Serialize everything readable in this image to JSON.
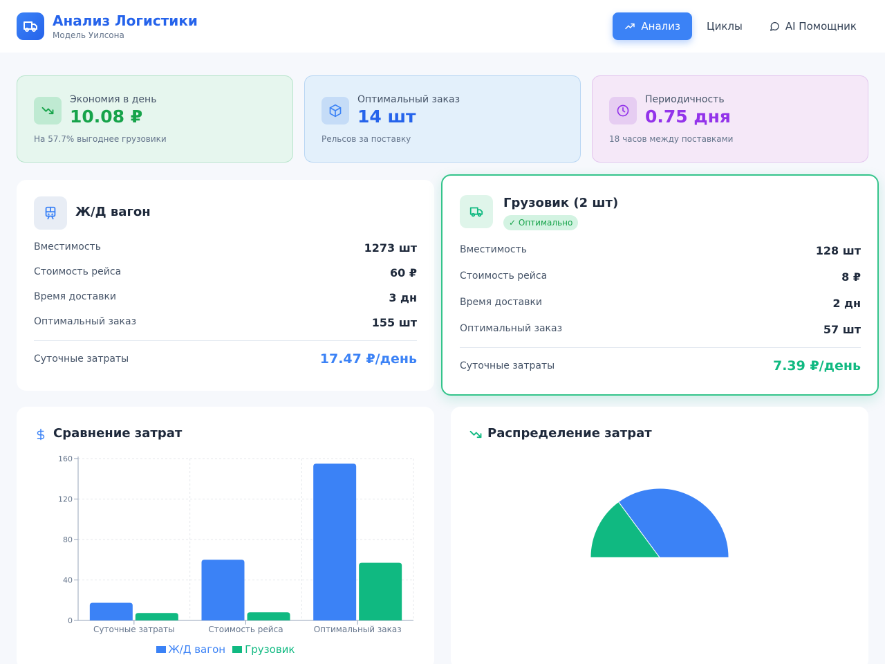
{
  "header": {
    "title": "Анализ Логистики",
    "subtitle": "Модель Уилсона",
    "nav": [
      {
        "label": "Анализ",
        "icon": "trending-up-icon",
        "active": true
      },
      {
        "label": "Циклы",
        "icon": "",
        "active": false
      },
      {
        "label": "AI Помощник",
        "icon": "chat-icon",
        "active": false
      }
    ]
  },
  "stats": [
    {
      "label": "Экономия в день",
      "value": "10.08 ₽",
      "note": "На 57.7% выгоднее грузовики",
      "icon": "trending-down-icon",
      "color": "#16a34a"
    },
    {
      "label": "Оптимальный заказ",
      "value": "14 шт",
      "note": "Рельсов за поставку",
      "icon": "package-icon",
      "color": "#2563eb"
    },
    {
      "label": "Периодичность",
      "value": "0.75 дня",
      "note": "18 часов между поставками",
      "icon": "clock-icon",
      "color": "#9333ea"
    }
  ],
  "rail": {
    "title": "Ж/Д вагон",
    "rows": [
      {
        "label": "Вместимость",
        "value": "1273 шт"
      },
      {
        "label": "Стоимость рейса",
        "value": "60 ₽"
      },
      {
        "label": "Время доставки",
        "value": "3 дн"
      },
      {
        "label": "Оптимальный заказ",
        "value": "155 шт"
      }
    ],
    "total_label": "Суточные затраты",
    "total_value": "17.47 ₽/день"
  },
  "truck": {
    "title": "Грузовик (2 шт)",
    "badge": "✓ Оптимально",
    "rows": [
      {
        "label": "Вместимость",
        "value": "128 шт"
      },
      {
        "label": "Стоимость рейса",
        "value": "8 ₽"
      },
      {
        "label": "Время доставки",
        "value": "2 дн"
      },
      {
        "label": "Оптимальный заказ",
        "value": "57 шт"
      }
    ],
    "total_label": "Суточные затраты",
    "total_value": "7.39 ₽/день"
  },
  "bar_card": {
    "title": "Сравнение затрат",
    "icon": "dollar-icon"
  },
  "pie_card": {
    "title": "Распределение затрат",
    "icon": "trending-down-icon"
  },
  "colors": {
    "rail": "#3b82f6",
    "truck": "#10b981"
  },
  "chart_data": [
    {
      "type": "bar",
      "title": "Сравнение затрат",
      "categories": [
        "Суточные затраты",
        "Стоимость рейса",
        "Оптимальный заказ"
      ],
      "series": [
        {
          "name": "Ж/Д вагон",
          "values": [
            17.47,
            60,
            155
          ],
          "color": "#3b82f6"
        },
        {
          "name": "Грузовик",
          "values": [
            7.39,
            8,
            57
          ],
          "color": "#10b981"
        }
      ],
      "yticks": [
        0,
        40,
        80,
        120,
        160
      ],
      "ylim": [
        0,
        160
      ],
      "grid": true,
      "legend": "bottom"
    },
    {
      "type": "pie",
      "title": "Распределение затрат",
      "slices": [
        {
          "name": "Ж/Д вагон",
          "value": 17.47,
          "color": "#3b82f6"
        },
        {
          "name": "Грузовик",
          "value": 7.39,
          "color": "#10b981"
        }
      ]
    }
  ]
}
